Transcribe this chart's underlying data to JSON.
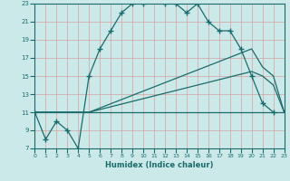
{
  "xlabel": "Humidex (Indice chaleur)",
  "xlim": [
    0,
    23
  ],
  "ylim": [
    7,
    23
  ],
  "yticks": [
    7,
    9,
    11,
    13,
    15,
    17,
    19,
    21,
    23
  ],
  "xticks": [
    0,
    1,
    2,
    3,
    4,
    5,
    6,
    7,
    8,
    9,
    10,
    11,
    12,
    13,
    14,
    15,
    16,
    17,
    18,
    19,
    20,
    21,
    22,
    23
  ],
  "bg_color": "#cce9e9",
  "grid_color": "#b0d4d4",
  "line_color": "#1a6b6b",
  "line1_x": [
    0,
    1,
    2,
    3,
    4,
    5,
    6,
    7,
    8,
    9,
    10,
    11,
    12,
    13,
    14,
    15,
    16,
    17,
    18,
    19,
    20,
    21,
    22
  ],
  "line1_y": [
    11,
    8,
    10,
    9,
    7,
    15,
    18,
    20,
    22,
    23,
    23,
    24,
    23,
    23,
    22,
    23,
    21,
    20,
    20,
    18,
    15,
    12,
    11
  ],
  "line2_x": [
    0,
    5,
    20,
    21,
    22,
    23
  ],
  "line2_y": [
    11,
    11,
    18,
    16,
    15,
    11
  ],
  "line3_x": [
    0,
    5,
    20,
    21,
    22,
    23
  ],
  "line3_y": [
    11,
    11,
    15.5,
    15,
    14,
    11
  ],
  "line4_x": [
    0,
    5,
    22,
    23
  ],
  "line4_y": [
    11,
    11,
    11,
    11
  ]
}
